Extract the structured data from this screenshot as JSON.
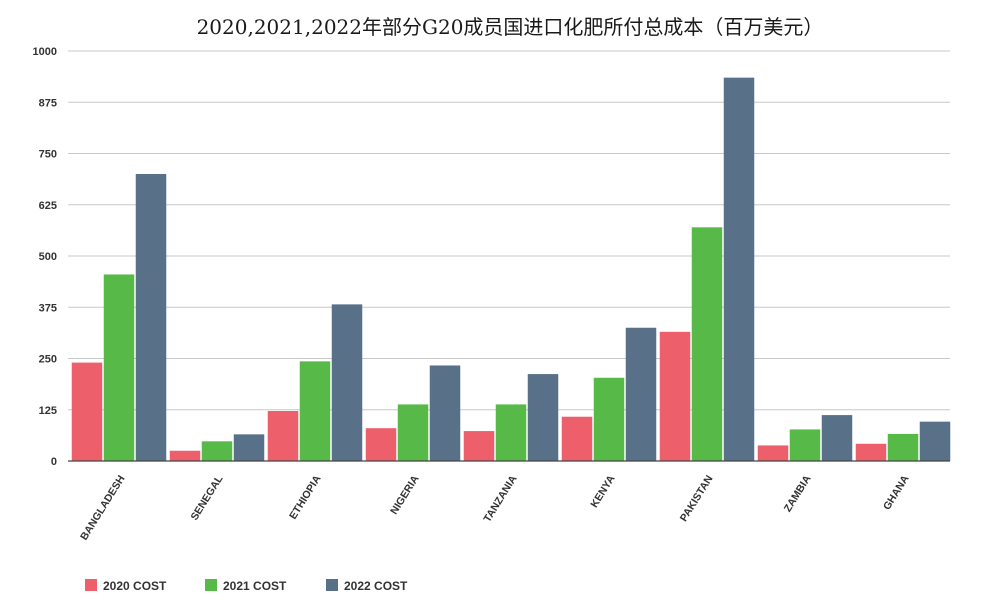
{
  "chart_data": {
    "type": "bar",
    "title": "2020,2021,2022年部分G20成员国进口化肥所付总成本（百万美元）",
    "categories": [
      "BANGLADESH",
      "SENEGAL",
      "ETHIOPIA",
      "NIGERIA",
      "TANZANIA",
      "KENYA",
      "PAKISTAN",
      "ZAMBIA",
      "GHANA"
    ],
    "series": [
      {
        "name": "2020 COST",
        "color": "#ee5f6c",
        "values": [
          240,
          25,
          122,
          80,
          73,
          108,
          315,
          38,
          42
        ]
      },
      {
        "name": "2021 COST",
        "color": "#57b947",
        "values": [
          455,
          48,
          243,
          138,
          138,
          203,
          570,
          77,
          66
        ]
      },
      {
        "name": "2022 COST",
        "color": "#587189",
        "values": [
          700,
          65,
          382,
          233,
          212,
          325,
          935,
          112,
          96
        ]
      }
    ],
    "y_ticks": [
      "0",
      "125",
      "250",
      "375",
      "500",
      "625",
      "750",
      "875",
      "1000"
    ],
    "ylim": [
      0,
      1000
    ],
    "grid": true,
    "legend_position": "bottom-left"
  }
}
